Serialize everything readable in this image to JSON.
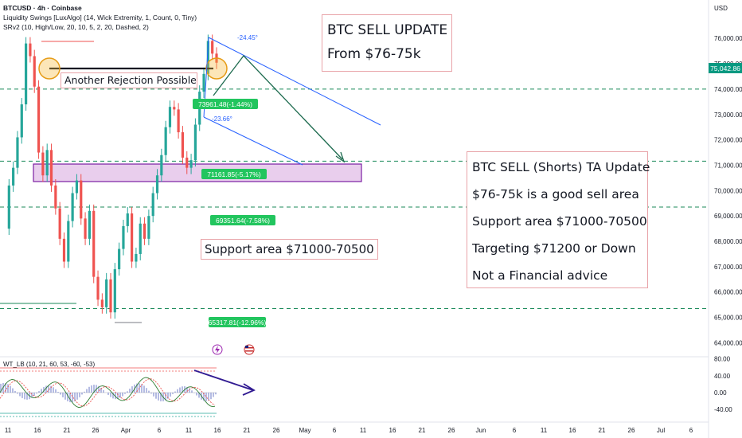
{
  "legend": {
    "symbol": "BTCUSD · 4h · Coinbase",
    "indicator1": "Liquidity Swings [LuxAlgo] (14, Wick Extremity, 1, Count, 0, Tiny)",
    "indicator2": "SRv2 (10, High/Low, 20, 10, 5, 2, 20, Dashed, 2)"
  },
  "currency": "USD",
  "price_axis": [
    "76,000.00",
    "75,000.00",
    "74,000.00",
    "73,000.00",
    "72,000.00",
    "71,000.00",
    "70,000.00",
    "69,000.00",
    "68,000.00",
    "67,000.00",
    "66,000.00",
    "65,000.00",
    "64,000.00"
  ],
  "current_price": "75,042.86",
  "osc_axis": [
    "80.00",
    "40.00",
    "0.00",
    "-40.00"
  ],
  "osc_label": "WT_LB (10, 21, 60, 53, -60, -53)",
  "time_axis": [
    "11",
    "16",
    "21",
    "26",
    "Apr",
    "6",
    "11",
    "16",
    "21",
    "26",
    "May",
    "6",
    "11",
    "16",
    "21",
    "26",
    "Jun",
    "6",
    "11",
    "16",
    "21",
    "26",
    "Jul",
    "6"
  ],
  "annotations": {
    "title_box": [
      "BTC SELL UPDATE",
      "From $76-75k"
    ],
    "ta_box": [
      "BTC SELL (Shorts) TA Update",
      "$76-75k is a good sell area",
      "Support area $71000-70500",
      "Targeting $71200 or Down",
      "Not a Financial advice"
    ],
    "rejection": "Another Rejection Possible",
    "support": "Support area $71000-70500"
  },
  "pct_tags": [
    "73961.48(-1.44%)",
    "71161.85(-5.17%)",
    "69351.64(-7.58%)",
    "65317.81(-12.96%)"
  ],
  "angle_labels": [
    "-24.45°",
    "-23.66°"
  ],
  "colors": {
    "up": "#26a69a",
    "down": "#ef5350",
    "tag": "#22c55e",
    "zone": "#e1bee7",
    "zone_border": "#7b1fa2",
    "channel": "#2962ff",
    "dotted": "#1b8a5a",
    "price_tag": "#089981"
  },
  "chart_data": {
    "type": "line",
    "title": "BTCUSD · 4h · Coinbase",
    "xlabel": "",
    "ylabel": "USD",
    "ylim": [
      63700,
      77200
    ],
    "series": [
      {
        "name": "BTCUSD",
        "values": [
          68500,
          70200,
          70900,
          72100,
          73400,
          75800,
          75300,
          74100,
          71500,
          70600,
          71600,
          70200,
          69300,
          68100,
          67200,
          68800,
          69900,
          70400,
          68900,
          68100,
          69200,
          66600,
          65700,
          65400,
          66500,
          65200,
          66900,
          67700,
          68600,
          69100,
          67200,
          67500,
          68700,
          68100,
          69000,
          69900,
          70600,
          71400,
          72500,
          73300,
          73200,
          72300,
          71300,
          70900,
          71200,
          72600,
          73900,
          74600,
          75900,
          75400,
          75042
        ]
      }
    ],
    "horizontal_levels": [
      74000,
      71160,
      69350,
      65350
    ],
    "support_zone": [
      70500,
      71100
    ]
  }
}
